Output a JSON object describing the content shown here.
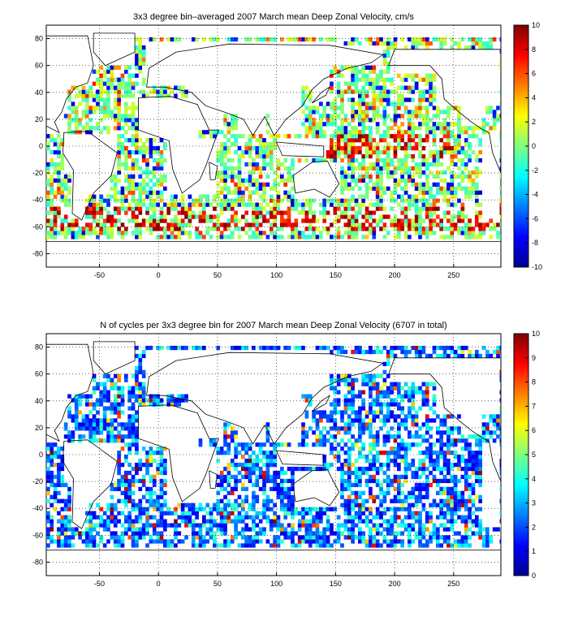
{
  "chart_data": [
    {
      "type": "heatmap",
      "title": "3x3 degree bin–averaged 2007 March mean Deep Zonal Velocity, cm/s",
      "xlim": [
        -95,
        290
      ],
      "ylim": [
        -90,
        90
      ],
      "xticks": [
        "-50",
        "0",
        "50",
        "100",
        "150",
        "200",
        "250"
      ],
      "yticks": [
        "80",
        "60",
        "40",
        "20",
        "0",
        "-20",
        "-40",
        "-60",
        "-80"
      ],
      "grid": true,
      "colorbar": {
        "range": [
          -10,
          10
        ],
        "ticks": [
          "10",
          "8",
          "6",
          "4",
          "2",
          "0",
          "-2",
          "-4",
          "-6",
          "-8",
          "-10"
        ],
        "colormap": "jet"
      },
      "bin_size_deg": 3
    },
    {
      "type": "heatmap",
      "title": "N of cycles per 3x3 degree bin for 2007 March mean Deep Zonal Velocity (6707 in total)",
      "xlim": [
        -95,
        290
      ],
      "ylim": [
        -90,
        90
      ],
      "xticks": [
        "-50",
        "0",
        "50",
        "100",
        "150",
        "200",
        "250"
      ],
      "yticks": [
        "80",
        "60",
        "40",
        "20",
        "0",
        "-20",
        "-40",
        "-60",
        "-80"
      ],
      "grid": true,
      "colorbar": {
        "range": [
          0,
          10
        ],
        "ticks": [
          "10",
          "9",
          "8",
          "7",
          "6",
          "5",
          "4",
          "3",
          "2",
          "1",
          "0"
        ],
        "colormap": "jet"
      },
      "bin_size_deg": 3,
      "total_cycles": 6707
    }
  ]
}
